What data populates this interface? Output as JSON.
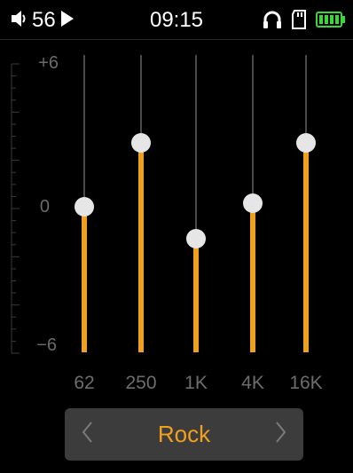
{
  "status": {
    "volume_value": "56",
    "time": "09:15",
    "icons": [
      "speaker-icon",
      "play-icon",
      "headphones-icon",
      "sd-card-icon",
      "battery-icon"
    ],
    "battery_color": "#3ad63a"
  },
  "scale": {
    "top_label": "+6",
    "mid_label": "0",
    "bottom_label": "−6",
    "min_db": -6,
    "max_db": 6
  },
  "bands": [
    {
      "label": "62",
      "gain_db": 0
    },
    {
      "label": "250",
      "gain_db": 4
    },
    {
      "label": "1K",
      "gain_db": -2
    },
    {
      "label": "4K",
      "gain_db": 0.2
    },
    {
      "label": "16K",
      "gain_db": 4
    }
  ],
  "preset": {
    "name": "Rock",
    "prev_icon": "chevron-left-icon",
    "next_icon": "chevron-right-icon"
  },
  "colors": {
    "accent": "#f0a020",
    "knob": "#e6e6e6",
    "track": "#4a4a4a",
    "label": "#6d6d6d"
  }
}
